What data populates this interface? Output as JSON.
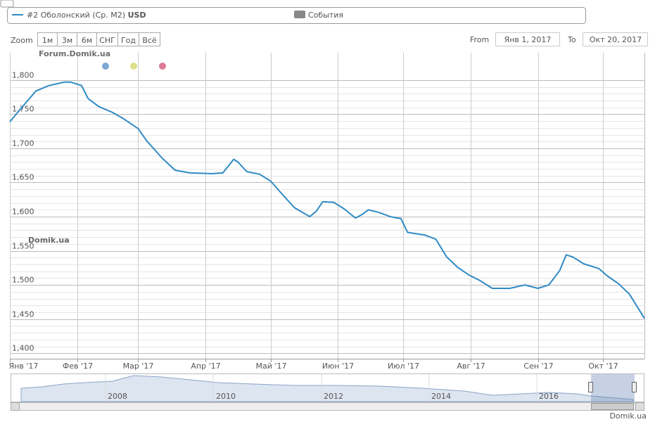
{
  "chart_data": {
    "type": "line",
    "legend": {
      "series_name": "#2 Оболонский (Ср. M2)",
      "currency": "USD",
      "events": "События"
    },
    "zoom": {
      "label": "Zoom",
      "buttons": [
        "1м",
        "3м",
        "6м",
        "СНГ",
        "Год",
        "Всё"
      ]
    },
    "range": {
      "from_label": "From",
      "from": "Янв 1, 2017",
      "to_label": "To",
      "to": "Окт 20, 2017"
    },
    "watermark": "Domik.ua",
    "forum": "Forum.Domik.ua",
    "credit": "Domik.ua",
    "navigator_years": [
      "2008",
      "2010",
      "2012",
      "2014",
      "2016"
    ],
    "x": [
      0,
      5,
      12,
      18,
      25,
      28,
      33,
      36,
      41,
      47,
      52,
      59,
      63,
      70,
      76,
      83,
      93,
      98,
      100,
      103,
      105,
      109,
      115,
      120,
      125,
      131,
      138,
      141,
      144,
      149,
      154,
      159,
      162,
      165,
      170,
      175,
      180,
      183,
      191,
      196,
      201,
      206,
      211,
      216,
      222,
      230,
      237,
      243,
      248,
      253,
      256,
      259,
      264,
      271,
      275,
      280,
      285,
      292
    ],
    "series": [
      {
        "name": "#2 Оболонский (Ср. M2)",
        "color": "#2f8ac4",
        "values": [
          1739,
          1758,
          1784,
          1792,
          1797,
          1797,
          1792,
          1773,
          1761,
          1753,
          1744,
          1729,
          1711,
          1686,
          1668,
          1664,
          1663,
          1664,
          1672,
          1684,
          1680,
          1666,
          1662,
          1652,
          1634,
          1613,
          1600,
          1608,
          1622,
          1621,
          1611,
          1598,
          1603,
          1610,
          1606,
          1600,
          1597,
          1577,
          1573,
          1567,
          1541,
          1526,
          1515,
          1507,
          1495,
          1495,
          1500,
          1495,
          1500,
          1521,
          1544,
          1541,
          1531,
          1524,
          1513,
          1502,
          1487,
          1451
        ]
      }
    ],
    "xlim": [
      0,
      292
    ],
    "xticks": [
      {
        "value": 0,
        "label": "Янв '17"
      },
      {
        "value": 31,
        "label": "Фев '17"
      },
      {
        "value": 59,
        "label": "Мар '17"
      },
      {
        "value": 90,
        "label": "Апр '17"
      },
      {
        "value": 120,
        "label": "Май '17"
      },
      {
        "value": 151,
        "label": "Июн '17"
      },
      {
        "value": 181,
        "label": "Июл '17"
      },
      {
        "value": 212,
        "label": "Авг '17"
      },
      {
        "value": 243,
        "label": "Сен '17"
      },
      {
        "value": 273,
        "label": "Окт '17"
      }
    ],
    "ylim": [
      1392,
      1840
    ],
    "yticks": [
      {
        "value": 1400,
        "label": "1,400"
      },
      {
        "value": 1450,
        "label": "1,450"
      },
      {
        "value": 1500,
        "label": "1,500"
      },
      {
        "value": 1550,
        "label": "1,550"
      },
      {
        "value": 1600,
        "label": "1,600"
      },
      {
        "value": 1650,
        "label": "1,650"
      },
      {
        "value": 1700,
        "label": "1,700"
      },
      {
        "value": 1750,
        "label": "1,750"
      },
      {
        "value": 1800,
        "label": "1,800"
      }
    ],
    "grid": true,
    "minor_grid": true
  }
}
